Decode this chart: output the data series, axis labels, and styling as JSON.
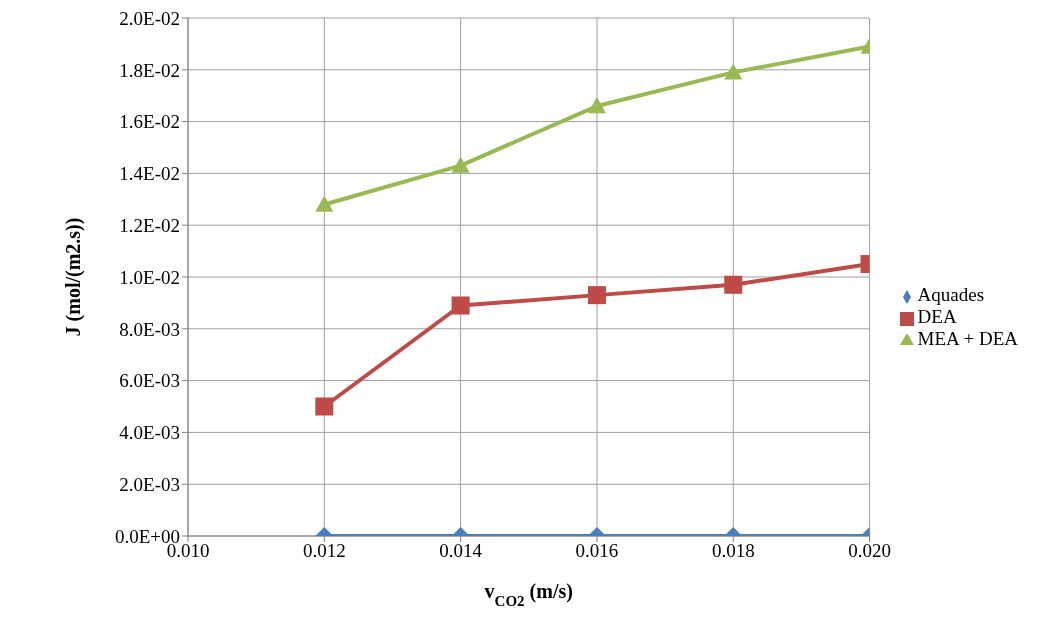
{
  "chart_data": {
    "type": "line",
    "xlabel": "v$_{CO2}$ (m/s)",
    "ylabel": "J (mol/(m2.s))",
    "x": [
      0.012,
      0.014,
      0.016,
      0.018,
      0.02
    ],
    "series": [
      {
        "name": "Aquades",
        "color": "#4a7ebb",
        "marker": "diamond",
        "values": [
          0,
          0,
          0,
          0,
          0
        ]
      },
      {
        "name": "DEA",
        "color": "#be4b48",
        "marker": "square",
        "values": [
          0.005,
          0.0089,
          0.0093,
          0.0097,
          0.0105
        ]
      },
      {
        "name": "MEA + DEA",
        "color": "#98b954",
        "marker": "triangle",
        "values": [
          0.0128,
          0.0143,
          0.0166,
          0.0179,
          0.0189
        ]
      }
    ],
    "xlim": [
      0.01,
      0.02
    ],
    "xticks": [
      {
        "value": 0.01,
        "label": "0.010"
      },
      {
        "value": 0.012,
        "label": "0.012"
      },
      {
        "value": 0.014,
        "label": "0.014"
      },
      {
        "value": 0.016,
        "label": "0.016"
      },
      {
        "value": 0.018,
        "label": "0.018"
      },
      {
        "value": 0.02,
        "label": "0.020"
      }
    ],
    "ylim": [
      0,
      0.02
    ],
    "yticks": [
      {
        "value": 0,
        "label": "0.0E+00"
      },
      {
        "value": 0.002,
        "label": "2.0E-03"
      },
      {
        "value": 0.004,
        "label": "4.0E-03"
      },
      {
        "value": 0.006,
        "label": "6.0E-03"
      },
      {
        "value": 0.008,
        "label": "8.0E-03"
      },
      {
        "value": 0.01,
        "label": "1.0E-02"
      },
      {
        "value": 0.012,
        "label": "1.2E-02"
      },
      {
        "value": 0.014,
        "label": "1.4E-02"
      },
      {
        "value": 0.016,
        "label": "1.6E-02"
      },
      {
        "value": 0.018,
        "label": "1.8E-02"
      },
      {
        "value": 0.02,
        "label": "2.0E-02"
      }
    ],
    "grid": true,
    "legend": "right",
    "line_style": "solid"
  }
}
